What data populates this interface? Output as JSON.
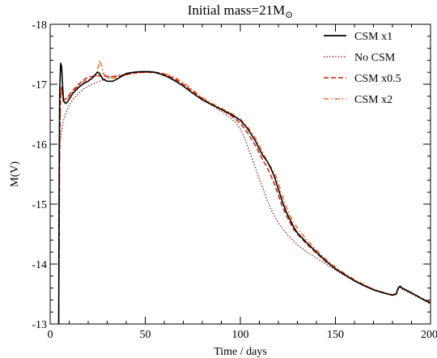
{
  "chart_data": {
    "type": "line",
    "title": "Initial mass=21M⊙",
    "xlabel": "Time / days",
    "ylabel": "M(V)",
    "xlim": [
      0,
      200
    ],
    "ylim": [
      -13,
      -18
    ],
    "y_inverted": true,
    "grid": false,
    "legend_position": "top-right",
    "x_ticks": [
      0,
      50,
      100,
      150,
      200
    ],
    "y_ticks": [
      -18,
      -17,
      -16,
      -15,
      -14,
      -13
    ],
    "series": [
      {
        "name": "CSM x1",
        "color": "#000000",
        "dash": "solid",
        "x": [
          4.5,
          4.6,
          4.8,
          5.0,
          5.5,
          6.0,
          6.5,
          7.0,
          8,
          9,
          10,
          12,
          15,
          18,
          20,
          22,
          24,
          25,
          26,
          27,
          28,
          30,
          33,
          36,
          40,
          44,
          48,
          52,
          55,
          58,
          62,
          66,
          70,
          75,
          80,
          85,
          90,
          95,
          100,
          104,
          108,
          110,
          112,
          114,
          116,
          118,
          120,
          122,
          124,
          126,
          128,
          130,
          135,
          140,
          145,
          150,
          155,
          160,
          165,
          170,
          175,
          180,
          182,
          183,
          184,
          185,
          190,
          195,
          200
        ],
        "y": [
          -13.0,
          -14.5,
          -16.0,
          -16.9,
          -17.35,
          -17.3,
          -17.0,
          -16.72,
          -16.68,
          -16.7,
          -16.75,
          -16.85,
          -16.95,
          -17.02,
          -17.05,
          -17.1,
          -17.17,
          -17.2,
          -17.18,
          -17.12,
          -17.08,
          -17.05,
          -17.05,
          -17.1,
          -17.18,
          -17.2,
          -17.21,
          -17.21,
          -17.2,
          -17.17,
          -17.12,
          -17.05,
          -16.97,
          -16.85,
          -16.74,
          -16.66,
          -16.58,
          -16.5,
          -16.4,
          -16.25,
          -16.05,
          -15.92,
          -15.8,
          -15.72,
          -15.6,
          -15.45,
          -15.25,
          -15.05,
          -14.88,
          -14.75,
          -14.62,
          -14.52,
          -14.35,
          -14.2,
          -14.05,
          -13.92,
          -13.82,
          -13.72,
          -13.64,
          -13.57,
          -13.52,
          -13.48,
          -13.5,
          -13.6,
          -13.63,
          -13.6,
          -13.52,
          -13.43,
          -13.35
        ]
      },
      {
        "name": "No CSM",
        "color": "#7a1010",
        "dash": "dotted",
        "x": [
          4.5,
          4.8,
          5.0,
          5.5,
          6.0,
          7.0,
          8,
          10,
          12,
          15,
          18,
          22,
          26,
          30,
          35,
          40,
          45,
          50,
          55,
          60,
          65,
          70,
          75,
          80,
          85,
          90,
          95,
          98,
          100,
          102,
          104,
          106,
          108,
          110,
          112,
          114,
          116,
          118,
          120,
          125,
          130,
          135,
          140,
          145,
          150,
          155,
          160,
          165,
          170,
          175,
          180,
          182,
          183,
          184,
          185,
          190,
          195,
          200
        ],
        "y": [
          -13.0,
          -15.5,
          -15.9,
          -16.1,
          -16.25,
          -16.4,
          -16.5,
          -16.65,
          -16.75,
          -16.85,
          -16.93,
          -17.0,
          -17.05,
          -17.1,
          -17.14,
          -17.17,
          -17.19,
          -17.2,
          -17.19,
          -17.15,
          -17.08,
          -16.97,
          -16.85,
          -16.74,
          -16.65,
          -16.55,
          -16.43,
          -16.35,
          -16.25,
          -16.12,
          -15.95,
          -15.78,
          -15.6,
          -15.42,
          -15.25,
          -15.08,
          -14.92,
          -14.8,
          -14.68,
          -14.48,
          -14.32,
          -14.2,
          -14.1,
          -14.0,
          -13.9,
          -13.81,
          -13.73,
          -13.65,
          -13.58,
          -13.52,
          -13.48,
          -13.5,
          -13.58,
          -13.61,
          -13.58,
          -13.5,
          -13.42,
          -13.33
        ]
      },
      {
        "name": "CSM x0.5",
        "color": "#c41a0c",
        "dash": "dashed",
        "x": [
          4.5,
          4.8,
          5.0,
          5.5,
          6.0,
          6.5,
          7.0,
          8,
          10,
          12,
          15,
          18,
          20,
          22,
          25,
          28,
          30,
          35,
          40,
          45,
          50,
          55,
          60,
          65,
          70,
          75,
          80,
          85,
          90,
          95,
          100,
          104,
          108,
          110,
          112,
          114,
          116,
          118,
          120,
          122,
          124,
          126,
          128,
          130,
          135,
          140,
          145,
          150,
          155,
          160,
          165,
          170,
          175,
          180,
          182,
          183,
          184,
          185,
          190,
          195,
          200
        ],
        "y": [
          -13.0,
          -15.0,
          -16.2,
          -16.85,
          -16.95,
          -16.85,
          -16.75,
          -16.75,
          -16.82,
          -16.9,
          -17.0,
          -17.08,
          -17.12,
          -17.13,
          -17.14,
          -17.14,
          -17.13,
          -17.13,
          -17.16,
          -17.19,
          -17.2,
          -17.2,
          -17.17,
          -17.1,
          -17.0,
          -16.88,
          -16.76,
          -16.66,
          -16.58,
          -16.48,
          -16.35,
          -16.18,
          -15.97,
          -15.85,
          -15.72,
          -15.62,
          -15.48,
          -15.33,
          -15.15,
          -14.97,
          -14.82,
          -14.7,
          -14.58,
          -14.5,
          -14.33,
          -14.18,
          -14.04,
          -13.92,
          -13.81,
          -13.72,
          -13.64,
          -13.57,
          -13.52,
          -13.48,
          -13.5,
          -13.6,
          -13.63,
          -13.6,
          -13.52,
          -13.43,
          -13.35
        ]
      },
      {
        "name": "CSM x2",
        "color": "#e86a28",
        "dash": "dashdot",
        "x": [
          4.5,
          4.8,
          5.0,
          5.5,
          6.0,
          6.5,
          7.0,
          8,
          10,
          12,
          15,
          18,
          20,
          22,
          24,
          25,
          26,
          27,
          28,
          30,
          33,
          36,
          40,
          45,
          50,
          55,
          60,
          65,
          70,
          75,
          80,
          85,
          90,
          95,
          100,
          104,
          108,
          110,
          112,
          114,
          116,
          118,
          120,
          122,
          124,
          126,
          128,
          130,
          135,
          140,
          145,
          150,
          155,
          160,
          165,
          170,
          175,
          180,
          182,
          183,
          184,
          185,
          190,
          195,
          200
        ],
        "y": [
          -13.0,
          -14.8,
          -16.0,
          -16.7,
          -16.9,
          -16.8,
          -16.7,
          -16.72,
          -16.8,
          -16.88,
          -16.98,
          -17.05,
          -17.08,
          -17.1,
          -17.15,
          -17.25,
          -17.4,
          -17.3,
          -17.18,
          -17.12,
          -17.1,
          -17.12,
          -17.16,
          -17.19,
          -17.2,
          -17.2,
          -17.18,
          -17.12,
          -17.03,
          -16.9,
          -16.78,
          -16.68,
          -16.6,
          -16.52,
          -16.42,
          -16.28,
          -16.1,
          -15.98,
          -15.85,
          -15.72,
          -15.62,
          -15.52,
          -15.35,
          -15.15,
          -14.97,
          -14.82,
          -14.7,
          -14.6,
          -14.4,
          -14.24,
          -14.08,
          -13.95,
          -13.84,
          -13.74,
          -13.66,
          -13.58,
          -13.53,
          -13.49,
          -13.51,
          -13.6,
          -13.63,
          -13.6,
          -13.52,
          -13.44,
          -13.36
        ]
      }
    ]
  }
}
